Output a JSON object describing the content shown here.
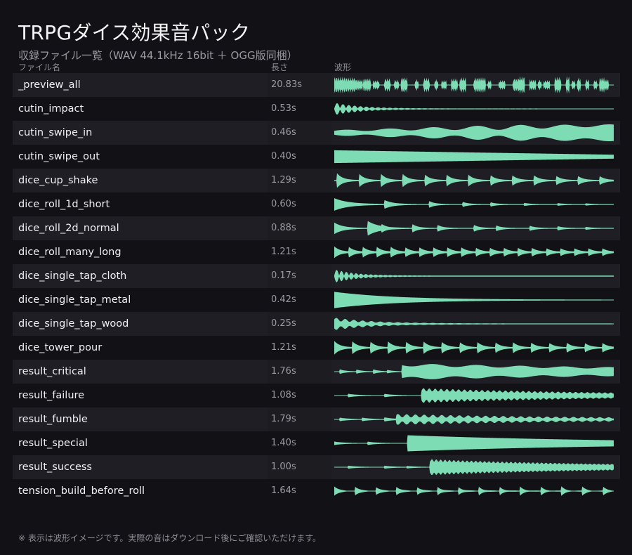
{
  "title": "TRPGダイス効果音パック",
  "subtitle": "収録ファイル一覧（WAV 44.1kHz 16bit ＋ OGG版同梱）",
  "columns": {
    "name": "ファイル名",
    "length": "長さ",
    "waveform": "波形"
  },
  "files": [
    {
      "name": "_preview_all",
      "length": "20.83s",
      "duration": 20.83
    },
    {
      "name": "cutin_impact",
      "length": "0.53s",
      "duration": 0.53
    },
    {
      "name": "cutin_swipe_in",
      "length": "0.46s",
      "duration": 0.46
    },
    {
      "name": "cutin_swipe_out",
      "length": "0.40s",
      "duration": 0.4
    },
    {
      "name": "dice_cup_shake",
      "length": "1.29s",
      "duration": 1.29
    },
    {
      "name": "dice_roll_1d_short",
      "length": "0.60s",
      "duration": 0.6
    },
    {
      "name": "dice_roll_2d_normal",
      "length": "0.88s",
      "duration": 0.88
    },
    {
      "name": "dice_roll_many_long",
      "length": "1.21s",
      "duration": 1.21
    },
    {
      "name": "dice_single_tap_cloth",
      "length": "0.17s",
      "duration": 0.17
    },
    {
      "name": "dice_single_tap_metal",
      "length": "0.42s",
      "duration": 0.42
    },
    {
      "name": "dice_single_tap_wood",
      "length": "0.25s",
      "duration": 0.25
    },
    {
      "name": "dice_tower_pour",
      "length": "1.21s",
      "duration": 1.21
    },
    {
      "name": "result_critical",
      "length": "1.76s",
      "duration": 1.76
    },
    {
      "name": "result_failure",
      "length": "1.08s",
      "duration": 1.08
    },
    {
      "name": "result_fumble",
      "length": "1.79s",
      "duration": 1.79
    },
    {
      "name": "result_special",
      "length": "1.40s",
      "duration": 1.4
    },
    {
      "name": "result_success",
      "length": "1.00s",
      "duration": 1.0
    },
    {
      "name": "tension_build_before_roll",
      "length": "1.64s",
      "duration": 1.64
    }
  ],
  "waveform_color": "#7ddcb4",
  "row_alt_color": "#1e1e24",
  "background_color": "#121216",
  "footnote": "※ 表示は波形イメージです。実際の音はダウンロード後にご確認いただけます。"
}
